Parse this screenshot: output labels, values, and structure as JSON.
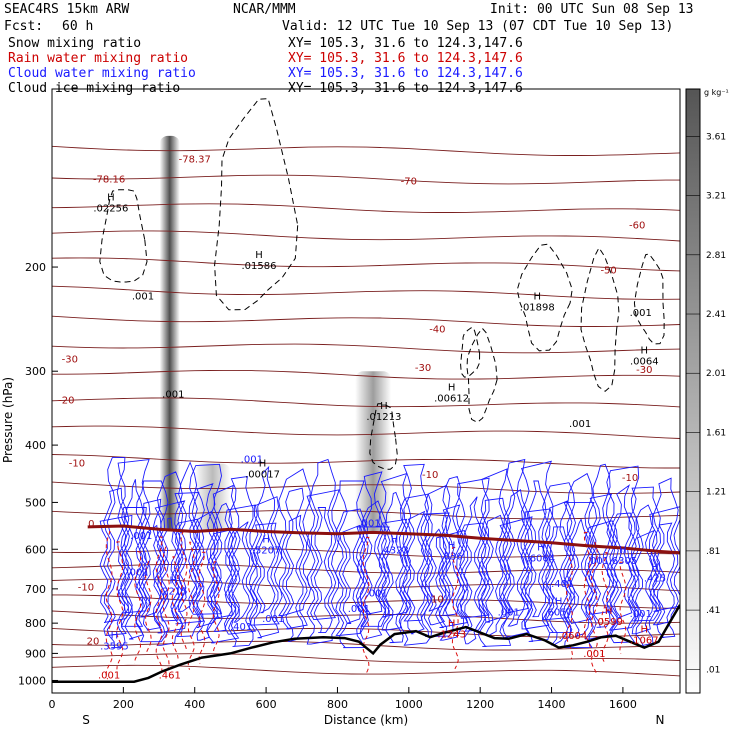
{
  "header": {
    "model": "SEAC4RS 15km ARW",
    "org": "NCAR/MMM",
    "init": "Init: 00 UTC Sun 08 Sep 13",
    "fcst_label": "Fcst:",
    "fcst_value": "60 h",
    "valid": "Valid: 12 UTC Tue 10 Sep 13 (07 CDT Tue 10 Sep 13)"
  },
  "legend": [
    {
      "name": "Snow mixing ratio",
      "xy": "XY= 105.3, 31.6 to 124.3,147.6",
      "color": "#000000"
    },
    {
      "name": "Rain water mixing ratio",
      "xy": "XY= 105.3, 31.6 to 124.3,147.6",
      "color": "#cc0000"
    },
    {
      "name": "Cloud water mixing ratio",
      "xy": "XY= 105.3, 31.6 to 124.3,147.6",
      "color": "#1a1aff"
    },
    {
      "name": "Cloud ice mixing ratio",
      "xy": "XY= 105.3, 31.6 to 124.3,147.6",
      "color": "#000000"
    }
  ],
  "colorbar": {
    "unit": "g kg⁻¹",
    "ticks": [
      "3.61",
      "3.21",
      "2.81",
      "2.41",
      "2.01",
      "1.61",
      "1.21",
      ".81",
      ".41",
      ".01"
    ]
  },
  "chart_data": {
    "type": "contour",
    "xlabel": "Distance (km)",
    "ylabel": "Pressure (hPa)",
    "xlim": [
      0,
      1760
    ],
    "ylim": [
      1050,
      100
    ],
    "y_scale": "log-pressure",
    "x_ticks": [
      0,
      200,
      400,
      600,
      800,
      1000,
      1200,
      1400,
      1600
    ],
    "y_ticks": [
      200,
      300,
      400,
      500,
      600,
      700,
      800,
      900,
      1000
    ],
    "x_end_labels": {
      "left": "S",
      "right": "N"
    },
    "terrain": [
      [
        0,
        1005
      ],
      [
        120,
        1005
      ],
      [
        230,
        1005
      ],
      [
        270,
        990
      ],
      [
        310,
        965
      ],
      [
        360,
        940
      ],
      [
        420,
        915
      ],
      [
        500,
        900
      ],
      [
        560,
        880
      ],
      [
        620,
        862
      ],
      [
        680,
        850
      ],
      [
        760,
        845
      ],
      [
        820,
        848
      ],
      [
        860,
        860
      ],
      [
        880,
        880
      ],
      [
        900,
        900
      ],
      [
        920,
        870
      ],
      [
        960,
        835
      ],
      [
        1020,
        825
      ],
      [
        1060,
        845
      ],
      [
        1100,
        830
      ],
      [
        1160,
        812
      ],
      [
        1200,
        830
      ],
      [
        1240,
        848
      ],
      [
        1280,
        850
      ],
      [
        1330,
        835
      ],
      [
        1380,
        855
      ],
      [
        1420,
        880
      ],
      [
        1460,
        872
      ],
      [
        1500,
        860
      ],
      [
        1540,
        845
      ],
      [
        1580,
        840
      ],
      [
        1620,
        860
      ],
      [
        1660,
        880
      ],
      [
        1700,
        860
      ],
      [
        1730,
        800
      ],
      [
        1760,
        745
      ]
    ],
    "freezing_line": [
      [
        100,
        550
      ],
      [
        200,
        548
      ],
      [
        300,
        555
      ],
      [
        400,
        560
      ],
      [
        500,
        555
      ],
      [
        600,
        560
      ],
      [
        700,
        563
      ],
      [
        800,
        565
      ],
      [
        900,
        562
      ],
      [
        1000,
        565
      ],
      [
        1100,
        568
      ],
      [
        1200,
        575
      ],
      [
        1300,
        580
      ],
      [
        1400,
        585
      ],
      [
        1500,
        592
      ],
      [
        1600,
        597
      ],
      [
        1700,
        605
      ],
      [
        1760,
        608
      ]
    ],
    "temperature_labels": [
      {
        "text": "-78.16",
        "x": 160,
        "y": 144
      },
      {
        "text": "-78.37",
        "x": 400,
        "y": 133
      },
      {
        "text": "-70",
        "x": 1000,
        "y": 145
      },
      {
        "text": "-60",
        "x": 1640,
        "y": 172
      },
      {
        "text": "-50",
        "x": 1560,
        "y": 205
      },
      {
        "text": "-40",
        "x": 1080,
        "y": 258
      },
      {
        "text": "-30",
        "x": 1040,
        "y": 300
      },
      {
        "text": "-30",
        "x": 50,
        "y": 290
      },
      {
        "text": "-30",
        "x": 1660,
        "y": 302
      },
      {
        "text": "-20",
        "x": 40,
        "y": 340
      },
      {
        "text": "-10",
        "x": 70,
        "y": 435
      },
      {
        "text": "-10",
        "x": 1060,
        "y": 455
      },
      {
        "text": "-10",
        "x": 1620,
        "y": 460
      },
      {
        "text": "0",
        "x": 110,
        "y": 550
      },
      {
        "text": "-10",
        "x": 95,
        "y": 705
      },
      {
        "text": "10",
        "x": 1080,
        "y": 738
      },
      {
        "text": "20",
        "x": 115,
        "y": 870
      }
    ],
    "extrema_labels": [
      {
        "text": "H",
        "sub": ".02256",
        "x": 165,
        "y": 160,
        "color": "#000000"
      },
      {
        "text": "H",
        "sub": ".01586",
        "x": 580,
        "y": 200,
        "color": "#000000"
      },
      {
        "text": "",
        "sub": ".001",
        "x": 255,
        "y": 225,
        "color": "#000000"
      },
      {
        "text": "H",
        "sub": ".01898",
        "x": 1360,
        "y": 235,
        "color": "#000000"
      },
      {
        "text": "",
        "sub": ".001",
        "x": 1650,
        "y": 240,
        "color": "#000000"
      },
      {
        "text": "H",
        "sub": ".0064",
        "x": 1660,
        "y": 290,
        "color": "#000000"
      },
      {
        "text": "",
        "sub": ".001",
        "x": 340,
        "y": 330,
        "color": "#000000"
      },
      {
        "text": "H",
        "sub": ".00612",
        "x": 1120,
        "y": 335,
        "color": "#000000"
      },
      {
        "text": "H",
        "sub": ".01213",
        "x": 930,
        "y": 360,
        "color": "#000000"
      },
      {
        "text": "",
        "sub": ".001",
        "x": 1480,
        "y": 370,
        "color": "#000000"
      },
      {
        "text": "",
        "sub": ".001",
        "x": 560,
        "y": 425,
        "color": "#1a1aff"
      },
      {
        "text": "H",
        "sub": ".00017",
        "x": 590,
        "y": 450,
        "color": "#000000"
      },
      {
        "text": "",
        "sub": ".001",
        "x": 890,
        "y": 545,
        "color": "#1a1aff"
      },
      {
        "text": "",
        "sub": ".001",
        "x": 250,
        "y": 572,
        "color": "#1a1aff"
      },
      {
        "text": "H",
        "sub": ".5207",
        "x": 600,
        "y": 605,
        "color": "#1a1aff"
      },
      {
        "text": "H",
        "sub": ".4323",
        "x": 960,
        "y": 605,
        "color": "#1a1aff"
      },
      {
        "text": "H",
        "sub": ".636",
        "x": 1120,
        "y": 620,
        "color": "#1a1aff"
      },
      {
        "text": "H",
        "sub": ".6064",
        "x": 1370,
        "y": 625,
        "color": "#1a1aff"
      },
      {
        "text": "",
        "sub": ".001",
        "x": 1530,
        "y": 630,
        "color": "#1a1aff"
      },
      {
        "text": "H",
        "sub": ".6305",
        "x": 1600,
        "y": 630,
        "color": "#1a1aff"
      },
      {
        "text": "",
        "sub": ".001",
        "x": 240,
        "y": 660,
        "color": "#1a1aff"
      },
      {
        "text": "H",
        "sub": ".425",
        "x": 1690,
        "y": 675,
        "color": "#1a1aff"
      },
      {
        "text": "",
        "sub": ".401",
        "x": 1430,
        "y": 690,
        "color": "#1a1aff"
      },
      {
        "text": "H",
        "sub": ".2215",
        "x": 340,
        "y": 710,
        "color": "#1a1aff"
      },
      {
        "text": "",
        "sub": ".001",
        "x": 910,
        "y": 715,
        "color": "#1a1aff"
      },
      {
        "text": "",
        "sub": ".001",
        "x": 860,
        "y": 760,
        "color": "#1a1aff"
      },
      {
        "text": "",
        "sub": ".001",
        "x": 1280,
        "y": 770,
        "color": "#1a1aff"
      },
      {
        "text": "H",
        "sub": ".6057",
        "x": 1420,
        "y": 770,
        "color": "#1a1aff"
      },
      {
        "text": "",
        "sub": ".001",
        "x": 620,
        "y": 790,
        "color": "#1a1aff"
      },
      {
        "text": "",
        "sub": ".001",
        "x": 1650,
        "y": 775,
        "color": "#1a1aff"
      },
      {
        "text": "",
        "sub": ".401",
        "x": 530,
        "y": 815,
        "color": "#1a1aff"
      },
      {
        "text": "H",
        "sub": ".0599",
        "x": 1560,
        "y": 800,
        "color": "#cc0000"
      },
      {
        "text": "",
        "sub": ".0604",
        "x": 1460,
        "y": 845,
        "color": "#cc0000"
      },
      {
        "text": "H",
        "sub": ".1243",
        "x": 1120,
        "y": 840,
        "color": "#cc0000"
      },
      {
        "text": "H",
        "sub": ".1067",
        "x": 1660,
        "y": 860,
        "color": "#cc0000"
      },
      {
        "text": "",
        "sub": ".001",
        "x": 1520,
        "y": 905,
        "color": "#cc0000"
      },
      {
        "text": "H",
        "sub": ".3595",
        "x": 175,
        "y": 880,
        "color": "#1a1aff"
      },
      {
        "text": "",
        "sub": ".001",
        "x": 160,
        "y": 985,
        "color": "#cc0000"
      },
      {
        "text": "",
        "sub": ".461",
        "x": 330,
        "y": 985,
        "color": "#cc0000"
      }
    ],
    "snow_shading_columns": [
      {
        "x": 330,
        "p_top": 120,
        "p_bot": 560,
        "intensity": 0.9
      },
      {
        "x": 450,
        "p_top": 430,
        "p_bot": 560,
        "intensity": 0.35
      },
      {
        "x": 900,
        "p_top": 300,
        "p_bot": 560,
        "intensity": 0.5
      }
    ]
  }
}
